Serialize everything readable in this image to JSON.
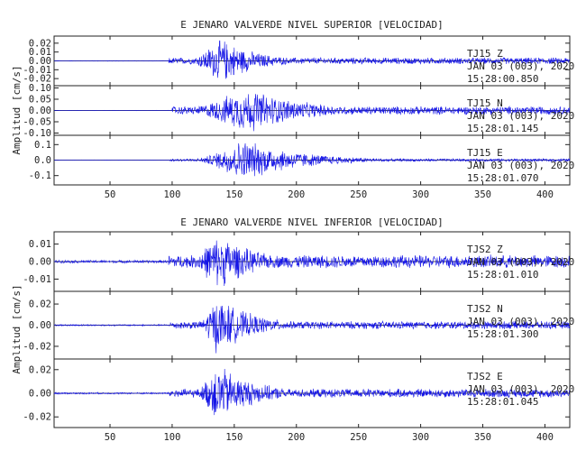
{
  "chart_data": [
    {
      "type": "line",
      "title": "E JENARO VALVERDE NIVEL SUPERIOR [VELOCIDAD]",
      "ylabel": "Amplitud [cm/s]",
      "xlabel": "",
      "xlim": [
        5,
        420
      ],
      "xticks": [
        50,
        100,
        150,
        200,
        250,
        300,
        350,
        400
      ],
      "grid": false,
      "panels": [
        {
          "station": "TJ15",
          "component": "Z",
          "date": "JAN 03 (003), 2020",
          "time": "15:28:00.850",
          "ylim": [
            -0.028,
            0.028
          ],
          "yticks": [
            0.02,
            0.01,
            0.0,
            -0.01,
            -0.02
          ],
          "yticklabels": [
            "0.02",
            "0.01",
            "0.00",
            "-0.01",
            "-0.02"
          ],
          "envelope": {
            "noise": 0.0004,
            "onset": 97,
            "onset_amp": 0.004,
            "peak_t": 142,
            "peak_amp": 0.026,
            "rise": 18,
            "decay": 28,
            "coda": 0.0008
          }
        },
        {
          "station": "TJ15",
          "component": "N",
          "date": "JAN 03 (003), 2020",
          "time": "15:28:01.145",
          "ylim": [
            -0.11,
            0.11
          ],
          "yticks": [
            0.1,
            0.05,
            0.0,
            -0.05,
            -0.1
          ],
          "yticklabels": [
            "0.10",
            "0.05",
            "0.00",
            "-0.05",
            "-0.10"
          ],
          "envelope": {
            "noise": 0.001,
            "onset": 100,
            "onset_amp": 0.02,
            "peak_t": 165,
            "peak_amp": 0.1,
            "rise": 35,
            "decay": 45,
            "coda": 0.005
          }
        },
        {
          "station": "TJ15",
          "component": "E",
          "date": "JAN 03 (003), 2020",
          "time": "15:28:01.070",
          "ylim": [
            -0.16,
            0.16
          ],
          "yticks": [
            0.1,
            0.0,
            -0.1
          ],
          "yticklabels": [
            "0.1",
            "0.0",
            "-0.1"
          ],
          "envelope": {
            "noise": 0.0015,
            "onset": 98,
            "onset_amp": 0.01,
            "peak_t": 160,
            "peak_amp": 0.14,
            "rise": 25,
            "decay": 45,
            "coda": 0.006
          }
        }
      ]
    },
    {
      "type": "line",
      "title": "E JENARO VALVERDE NIVEL INFERIOR [VELOCIDAD]",
      "ylabel": "Amplitud [cm/s]",
      "xlabel": "",
      "xlim": [
        5,
        420
      ],
      "xticks": [
        50,
        100,
        150,
        200,
        250,
        300,
        350,
        400
      ],
      "grid": false,
      "panels": [
        {
          "station": "TJS2",
          "component": "Z",
          "date": "JAN 03 (003), 2020",
          "time": "15:28:01.010",
          "ylim": [
            -0.017,
            0.017
          ],
          "yticks": [
            0.01,
            0.0,
            -0.01
          ],
          "yticklabels": [
            "0.01",
            "0.00",
            "-0.01"
          ],
          "envelope": {
            "noise": 0.0009,
            "onset": 97,
            "onset_amp": 0.004,
            "peak_t": 140,
            "peak_amp": 0.016,
            "rise": 18,
            "decay": 30,
            "coda": 0.0012
          }
        },
        {
          "station": "TJS2",
          "component": "N",
          "date": "JAN 03 (003), 2020",
          "time": "15:28:01.300",
          "ylim": [
            -0.032,
            0.032
          ],
          "yticks": [
            0.02,
            0.0,
            -0.02
          ],
          "yticklabels": [
            "0.02",
            "0.00",
            "-0.02"
          ],
          "envelope": {
            "noise": 0.0008,
            "onset": 98,
            "onset_amp": 0.004,
            "peak_t": 137,
            "peak_amp": 0.028,
            "rise": 10,
            "decay": 30,
            "coda": 0.0012
          }
        },
        {
          "station": "TJS2",
          "component": "E",
          "date": "JAN 03 (003), 2020",
          "time": "15:28:01.045",
          "ylim": [
            -0.029,
            0.029
          ],
          "yticks": [
            0.02,
            0.0,
            -0.02
          ],
          "yticklabels": [
            "0.02",
            "0.00",
            "-0.02"
          ],
          "envelope": {
            "noise": 0.0008,
            "onset": 98,
            "onset_amp": 0.004,
            "peak_t": 138,
            "peak_amp": 0.026,
            "rise": 12,
            "decay": 30,
            "coda": 0.0012
          }
        }
      ]
    }
  ],
  "colors": {
    "trace": "#1515e6",
    "axes": "#222222",
    "background": "#ffffff"
  }
}
